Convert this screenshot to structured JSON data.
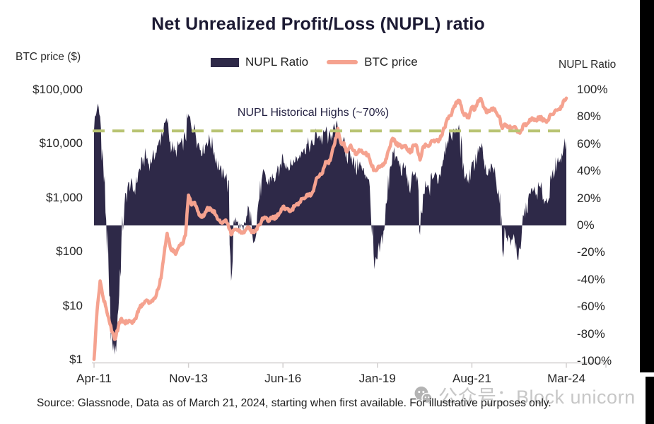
{
  "title": "Net Unrealized Profit/Loss (NUPL) ratio",
  "source": "Source: Glassnode, Data as of March 21, 2024, starting when first available. For illustrative purposes only.",
  "watermark": {
    "icon": "wechat-icon",
    "text": "公众号：Block unicorn"
  },
  "colors": {
    "nupl_area": "#2e2948",
    "btc_line": "#f5a28f",
    "dash_line": "#b9c473",
    "axis_line": "#d2cfcf"
  },
  "chart_data": {
    "type": "area+line",
    "dual_axis": true,
    "grid": false,
    "legend_position": "top-center",
    "title": "Net Unrealized Profit/Loss (NUPL) ratio",
    "x_unit": "month",
    "x_start": "2011-04",
    "x_end": "2024-03",
    "x_tick_labels": [
      "Apr-11",
      "Nov-13",
      "Jun-16",
      "Jan-19",
      "Aug-21",
      "Mar-24"
    ],
    "x_tick_month_index": [
      0,
      31,
      62,
      93,
      124,
      155
    ],
    "left_axis": {
      "title": "BTC price ($)",
      "scale": "log",
      "range": [
        1,
        100000
      ],
      "tick_labels": [
        "$100,000",
        "$10,000",
        "$1,000",
        "$100",
        "$10",
        "$1"
      ],
      "tick_values": [
        100000,
        10000,
        1000,
        100,
        10,
        1
      ]
    },
    "right_axis": {
      "title": "NUPL Ratio",
      "scale": "linear",
      "range_pct": [
        -100,
        100
      ],
      "tick_labels": [
        "100%",
        "80%",
        "60%",
        "40%",
        "20%",
        "0%",
        "-20%",
        "-40%",
        "-60%",
        "-80%",
        "-100%"
      ],
      "tick_values": [
        100,
        80,
        60,
        40,
        20,
        0,
        -20,
        -40,
        -60,
        -80,
        -100
      ]
    },
    "annotation": {
      "label": "NUPL Historical Highs (~70%)",
      "value_pct": 70,
      "line_style": "dashed",
      "line_color": "#b9c473"
    },
    "series": [
      {
        "name": "NUPL Ratio",
        "axis": "right",
        "unit": "%",
        "style": "area",
        "color": "#2e2948",
        "values": [
          72,
          87,
          80,
          45,
          5,
          -55,
          -88,
          -92,
          -60,
          -10,
          14,
          28,
          30,
          25,
          32,
          42,
          46,
          52,
          45,
          48,
          52,
          58,
          66,
          74,
          76,
          62,
          55,
          52,
          60,
          60,
          65,
          81,
          72,
          73,
          62,
          56,
          55,
          62,
          63,
          58,
          50,
          42,
          36,
          39,
          28,
          -38,
          4,
          2,
          -3,
          -5,
          6,
          12,
          -9,
          -6,
          18,
          32,
          38,
          30,
          36,
          34,
          38,
          42,
          52,
          46,
          42,
          45,
          48,
          50,
          56,
          56,
          60,
          58,
          60,
          68,
          66,
          62,
          70,
          64,
          68,
          71,
          73,
          62,
          60,
          48,
          56,
          48,
          40,
          46,
          40,
          38,
          36,
          5,
          -33,
          -25,
          -15,
          -5,
          15,
          42,
          54,
          50,
          47,
          38,
          43,
          30,
          27,
          40,
          35,
          -10,
          22,
          28,
          26,
          35,
          38,
          33,
          44,
          56,
          64,
          66,
          70,
          72,
          68,
          42,
          38,
          32,
          48,
          44,
          56,
          57,
          46,
          36,
          40,
          42,
          34,
          20,
          -18,
          -5,
          -8,
          -12,
          -8,
          -24,
          -20,
          8,
          12,
          22,
          26,
          22,
          28,
          26,
          18,
          20,
          32,
          40,
          48,
          48,
          58,
          62
        ]
      },
      {
        "name": "BTC price",
        "axis": "left",
        "unit": "USD",
        "style": "line",
        "color": "#f5a28f",
        "values": [
          1.0,
          8,
          29,
          14,
          9,
          5.2,
          3.2,
          2.4,
          4.2,
          5.9,
          4.9,
          4.9,
          5.1,
          5.1,
          6.6,
          9.4,
          10.5,
          12.4,
          11.2,
          12.5,
          13.5,
          20,
          33,
          90,
          215,
          120,
          100,
          95,
          130,
          140,
          200,
          1120,
          740,
          810,
          560,
          450,
          445,
          620,
          635,
          585,
          480,
          390,
          340,
          375,
          320,
          210,
          255,
          245,
          235,
          232,
          260,
          285,
          230,
          236,
          310,
          375,
          430,
          370,
          435,
          415,
          450,
          530,
          670,
          625,
          575,
          610,
          700,
          745,
          960,
          970,
          1180,
          1080,
          1350,
          2300,
          2500,
          2870,
          4600,
          4340,
          6450,
          9900,
          19000,
          10200,
          10300,
          6900,
          9250,
          7500,
          6400,
          7750,
          7000,
          6600,
          6300,
          4000,
          3300,
          3460,
          3850,
          4100,
          5350,
          8550,
          12900,
          10000,
          9600,
          8300,
          9150,
          7550,
          7200,
          9350,
          8550,
          5000,
          8650,
          9450,
          9140,
          11350,
          11650,
          10780,
          13800,
          19700,
          29000,
          33100,
          45200,
          58800,
          63500,
          37300,
          35000,
          29500,
          47100,
          43800,
          61300,
          67500,
          46200,
          38500,
          43200,
          45500,
          37700,
          31800,
          19000,
          23300,
          20000,
          19400,
          20500,
          16000,
          16550,
          23100,
          23150,
          28500,
          29250,
          27200,
          30450,
          29250,
          26000,
          26950,
          34650,
          37700,
          42250,
          42550,
          61200,
          70000
        ]
      }
    ]
  }
}
